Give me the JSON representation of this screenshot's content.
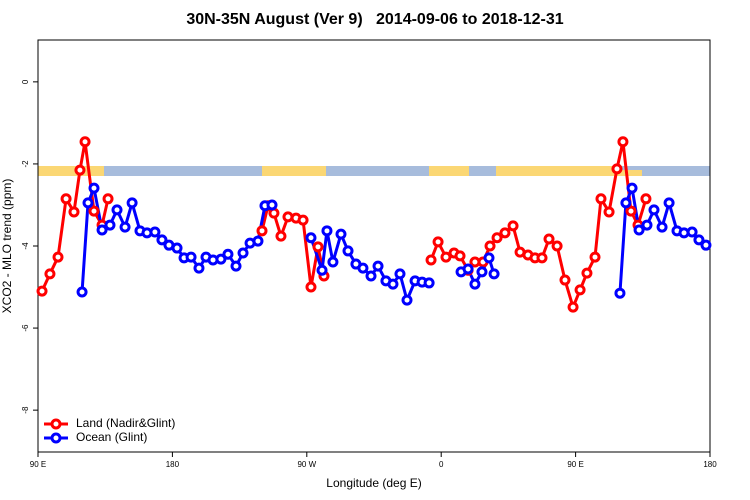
{
  "chart_data": {
    "type": "line",
    "title": "30N-35N August (Ver 9)   2014-09-06 to 2018-12-31",
    "x_label": "Longitude (deg E)",
    "y_label": "XCO2 - MLO trend (ppm)",
    "xlim": [
      90,
      540
    ],
    "ylim": [
      -9.02,
      1.02
    ],
    "xticks": [
      {
        "value": 90,
        "label": "90 E"
      },
      180,
      {
        "value": 270,
        "label": "90 W"
      },
      {
        "value": 360,
        "label": "0"
      },
      {
        "value": 450,
        "label": "90 E"
      },
      {
        "value": 540,
        "label": "180"
      }
    ],
    "yticks": [
      0,
      -2,
      -4,
      -6,
      -8
    ],
    "grid": false,
    "legend": "bottom-left",
    "series": [
      {
        "name": "Land (Nadir&Glint)",
        "color": "#ff0000",
        "x": [
          92.7,
          98,
          103.4,
          108.8,
          114.1,
          118.1,
          121.5,
          127.5,
          132.9,
          136.9,
          null,
          240,
          244,
          248,
          252.7,
          257.4,
          262.8,
          267.5,
          272.8,
          277.5,
          281.5,
          null,
          353.2,
          357.9,
          363.2,
          368.6,
          372.6,
          378,
          382.6,
          388,
          392.7,
          397.4,
          402.7,
          408.1,
          412.8,
          418.1,
          422.8,
          427.5,
          432.2,
          437.6,
          442.9,
          448.3,
          453,
          457.6,
          463,
          467,
          472.4,
          477.7,
          481.7,
          487.1,
          491.8,
          497.1
        ],
        "values": [
          -5.1,
          -4.68,
          -4.27,
          -2.85,
          -3.17,
          -2.15,
          -1.46,
          -3.15,
          -3.49,
          -2.85,
          null,
          -3.63,
          -3.02,
          -3.2,
          -3.76,
          -3.29,
          -3.32,
          -3.37,
          -5.0,
          -4.02,
          -4.73,
          null,
          -4.34,
          -3.9,
          -4.27,
          -4.17,
          -4.24,
          -4.59,
          -4.39,
          -4.39,
          -4.0,
          -3.8,
          -3.68,
          -3.51,
          -4.15,
          -4.22,
          -4.29,
          -4.29,
          -3.83,
          -4.0,
          -4.83,
          -5.49,
          -5.07,
          -4.66,
          -4.27,
          -2.85,
          -3.17,
          -2.12,
          -1.46,
          -3.15,
          -3.49,
          -2.85
        ]
      },
      {
        "name": "Ocean (Glint)",
        "color": "#0000ff",
        "x": [
          119.5,
          123.5,
          127.5,
          132.9,
          138.2,
          142.9,
          148.3,
          153,
          158.3,
          163,
          168.3,
          173,
          177.7,
          183.1,
          187.8,
          192.5,
          197.8,
          202.5,
          207.2,
          212.5,
          217.2,
          222.6,
          227.3,
          232,
          237.3,
          242,
          246.7,
          null,
          272.8,
          280.2,
          283.5,
          287.5,
          292.9,
          297.6,
          302.9,
          307.6,
          313,
          317.7,
          323,
          327.7,
          332.4,
          337.1,
          342.5,
          347.2,
          351.9,
          null,
          373.3,
          378,
          382.6,
          387.3,
          392,
          395.4,
          null,
          479.7,
          483.7,
          487.8,
          492.5,
          497.8,
          502.5,
          507.9,
          512.6,
          517.9,
          522.6,
          528,
          532.6,
          537.3
        ],
        "values": [
          -5.12,
          -2.95,
          -2.59,
          -3.61,
          -3.49,
          -3.12,
          -3.54,
          -2.95,
          -3.63,
          -3.68,
          -3.66,
          -3.85,
          -3.98,
          -4.05,
          -4.29,
          -4.27,
          -4.54,
          -4.27,
          -4.34,
          -4.32,
          -4.2,
          -4.49,
          -4.17,
          -3.93,
          -3.88,
          -3.02,
          -3.0,
          null,
          -3.8,
          -4.59,
          -3.63,
          -4.39,
          -3.71,
          -4.12,
          -4.44,
          -4.54,
          -4.73,
          -4.49,
          -4.85,
          -4.93,
          -4.68,
          -5.32,
          -4.85,
          -4.88,
          -4.9,
          null,
          -4.63,
          -4.56,
          -4.93,
          -4.63,
          -4.29,
          -4.68,
          null,
          -5.15,
          -2.95,
          -2.59,
          -3.61,
          -3.49,
          -3.12,
          -3.54,
          -2.95,
          -3.63,
          -3.68,
          -3.66,
          -3.85,
          -3.98
        ]
      }
    ]
  }
}
